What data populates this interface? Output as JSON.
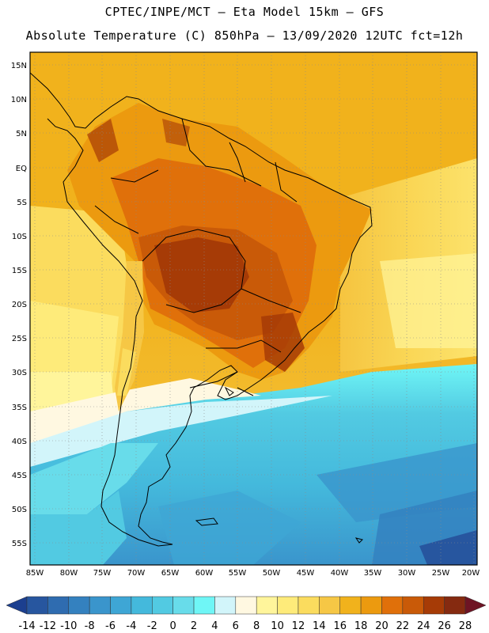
{
  "header": {
    "line1": "CPTEC/INPE/MCT –  Eta Model 15km – GFS",
    "line2": "Absolute Temperature (C) 850hPa – 13/09/2020 12UTC fct=12h"
  },
  "map": {
    "lat_labels": [
      "15N",
      "10N",
      "5N",
      "EQ",
      "5S",
      "10S",
      "15S",
      "20S",
      "25S",
      "30S",
      "35S",
      "40S",
      "45S",
      "50S",
      "55S"
    ],
    "lon_labels": [
      "85W",
      "80W",
      "75W",
      "70W",
      "65W",
      "60W",
      "55W",
      "50W",
      "45W",
      "40W",
      "35W",
      "30W",
      "25W",
      "20W"
    ],
    "grid": "dotted"
  },
  "colorbar": {
    "labels": [
      "-14",
      "-12",
      "-10",
      "-8",
      "-6",
      "-4",
      "-2",
      "0",
      "2",
      "4",
      "6",
      "8",
      "10",
      "12",
      "14",
      "16",
      "18",
      "20",
      "22",
      "24",
      "26",
      "28"
    ],
    "colors": [
      "#1c3f8f",
      "#27569f",
      "#2f6cb0",
      "#3481bf",
      "#3a95cc",
      "#3ea6d5",
      "#44b9dc",
      "#52cae2",
      "#68dcea",
      "#6ff6f6",
      "#d2f5fa",
      "#fff8e1",
      "#fff59b",
      "#feeb7a",
      "#fbdc5e",
      "#f6c745",
      "#f1b21c",
      "#ec9a0f",
      "#e0700a",
      "#c95a08",
      "#a63b06",
      "#852a10",
      "#6e1424"
    ]
  }
}
